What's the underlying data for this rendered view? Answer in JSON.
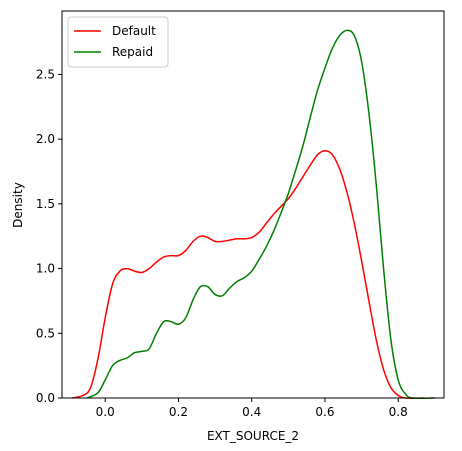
{
  "chart_data": {
    "type": "line",
    "title": "",
    "xlabel": "EXT_SOURCE_2",
    "ylabel": "Density",
    "xlim": [
      -0.118,
      0.925
    ],
    "ylim": [
      0.0,
      2.99
    ],
    "x_ticks": [
      0.0,
      0.2,
      0.4,
      0.6,
      0.8
    ],
    "x_tick_labels": [
      "0.0",
      "0.2",
      "0.4",
      "0.6",
      "0.8"
    ],
    "y_ticks": [
      0.0,
      0.5,
      1.0,
      1.5,
      2.0,
      2.5
    ],
    "y_tick_labels": [
      "0.0",
      "0.5",
      "1.0",
      "1.5",
      "2.0",
      "2.5"
    ],
    "grid": false,
    "legend_position": "top-left",
    "series": [
      {
        "name": "Default",
        "color": "#ff0000",
        "points": [
          [
            -0.09,
            0.0
          ],
          [
            -0.06,
            0.02
          ],
          [
            -0.04,
            0.08
          ],
          [
            -0.02,
            0.3
          ],
          [
            0.0,
            0.62
          ],
          [
            0.02,
            0.88
          ],
          [
            0.04,
            0.98
          ],
          [
            0.06,
            1.0
          ],
          [
            0.08,
            0.98
          ],
          [
            0.1,
            0.97
          ],
          [
            0.12,
            1.0
          ],
          [
            0.14,
            1.05
          ],
          [
            0.16,
            1.09
          ],
          [
            0.18,
            1.1
          ],
          [
            0.2,
            1.1
          ],
          [
            0.22,
            1.14
          ],
          [
            0.24,
            1.21
          ],
          [
            0.26,
            1.25
          ],
          [
            0.28,
            1.24
          ],
          [
            0.3,
            1.21
          ],
          [
            0.32,
            1.21
          ],
          [
            0.34,
            1.22
          ],
          [
            0.36,
            1.23
          ],
          [
            0.38,
            1.23
          ],
          [
            0.4,
            1.24
          ],
          [
            0.42,
            1.28
          ],
          [
            0.44,
            1.35
          ],
          [
            0.46,
            1.42
          ],
          [
            0.48,
            1.48
          ],
          [
            0.5,
            1.54
          ],
          [
            0.52,
            1.62
          ],
          [
            0.54,
            1.71
          ],
          [
            0.56,
            1.8
          ],
          [
            0.58,
            1.88
          ],
          [
            0.6,
            1.91
          ],
          [
            0.62,
            1.88
          ],
          [
            0.64,
            1.77
          ],
          [
            0.66,
            1.59
          ],
          [
            0.68,
            1.35
          ],
          [
            0.7,
            1.06
          ],
          [
            0.72,
            0.75
          ],
          [
            0.74,
            0.45
          ],
          [
            0.76,
            0.22
          ],
          [
            0.78,
            0.08
          ],
          [
            0.8,
            0.02
          ],
          [
            0.82,
            0.0
          ],
          [
            0.87,
            0.0
          ]
        ]
      },
      {
        "name": "Repaid",
        "color": "#008000",
        "points": [
          [
            -0.05,
            0.0
          ],
          [
            -0.02,
            0.04
          ],
          [
            0.0,
            0.14
          ],
          [
            0.02,
            0.25
          ],
          [
            0.04,
            0.29
          ],
          [
            0.06,
            0.31
          ],
          [
            0.08,
            0.35
          ],
          [
            0.1,
            0.36
          ],
          [
            0.12,
            0.38
          ],
          [
            0.14,
            0.5
          ],
          [
            0.16,
            0.59
          ],
          [
            0.18,
            0.59
          ],
          [
            0.2,
            0.57
          ],
          [
            0.22,
            0.62
          ],
          [
            0.24,
            0.76
          ],
          [
            0.26,
            0.86
          ],
          [
            0.28,
            0.86
          ],
          [
            0.3,
            0.8
          ],
          [
            0.32,
            0.79
          ],
          [
            0.34,
            0.85
          ],
          [
            0.36,
            0.9
          ],
          [
            0.38,
            0.93
          ],
          [
            0.4,
            0.98
          ],
          [
            0.42,
            1.07
          ],
          [
            0.44,
            1.17
          ],
          [
            0.46,
            1.29
          ],
          [
            0.48,
            1.43
          ],
          [
            0.5,
            1.58
          ],
          [
            0.52,
            1.76
          ],
          [
            0.54,
            1.95
          ],
          [
            0.56,
            2.17
          ],
          [
            0.58,
            2.38
          ],
          [
            0.6,
            2.55
          ],
          [
            0.62,
            2.7
          ],
          [
            0.64,
            2.8
          ],
          [
            0.66,
            2.84
          ],
          [
            0.68,
            2.8
          ],
          [
            0.7,
            2.6
          ],
          [
            0.72,
            2.2
          ],
          [
            0.74,
            1.65
          ],
          [
            0.76,
            1.0
          ],
          [
            0.78,
            0.45
          ],
          [
            0.8,
            0.14
          ],
          [
            0.82,
            0.03
          ],
          [
            0.84,
            0.0
          ],
          [
            0.9,
            0.0
          ]
        ]
      }
    ]
  }
}
